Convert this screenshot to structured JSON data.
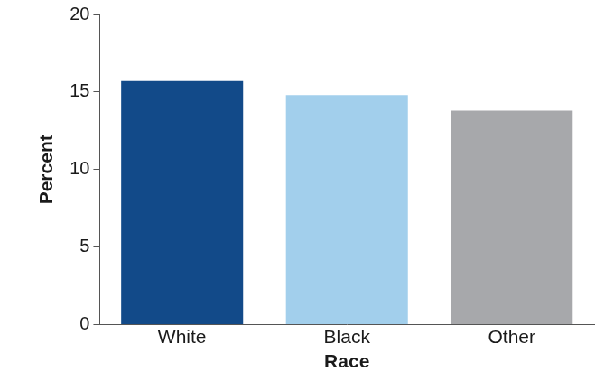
{
  "chart_data": {
    "type": "bar",
    "categories": [
      "White",
      "Black",
      "Other"
    ],
    "values": [
      15.7,
      14.8,
      13.8
    ],
    "colors": [
      "#124a89",
      "#a2cfec",
      "#a7a8ab"
    ],
    "xlabel": "Race",
    "ylabel": "Percent",
    "ylim": [
      0,
      20
    ],
    "yticks": [
      0,
      5,
      10,
      15,
      20
    ],
    "grid": false
  }
}
